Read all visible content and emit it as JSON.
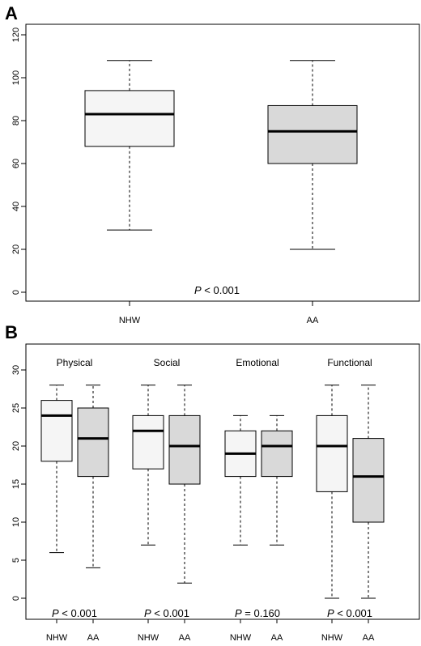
{
  "chart_data": [
    {
      "panel_label": "A",
      "type": "box",
      "ylim": [
        0,
        120
      ],
      "yticks": [
        0,
        20,
        40,
        60,
        80,
        100,
        120
      ],
      "grid": false,
      "categories": [
        "NHW",
        "AA"
      ],
      "boxes": [
        {
          "category": "NHW",
          "whisker_low": 29,
          "q1": 68,
          "median": 83,
          "q3": 94,
          "whisker_high": 108,
          "fill": "#f5f5f5"
        },
        {
          "category": "AA",
          "whisker_low": 20,
          "q1": 60,
          "median": 75,
          "q3": 87,
          "whisker_high": 108,
          "fill": "#d9d9d9"
        }
      ],
      "annotation": {
        "p": "P",
        "rest": " < 0.001"
      }
    },
    {
      "panel_label": "B",
      "type": "box",
      "ylim": [
        0,
        30
      ],
      "yticks": [
        0,
        5,
        10,
        15,
        20,
        25,
        30
      ],
      "grid": false,
      "groups": [
        {
          "title": "Physical",
          "pvalue": {
            "p": "P",
            "rest": " < 0.001"
          },
          "boxes": [
            {
              "category": "NHW",
              "whisker_low": 6,
              "q1": 18,
              "median": 24,
              "q3": 26,
              "whisker_high": 28,
              "fill": "#f5f5f5"
            },
            {
              "category": "AA",
              "whisker_low": 4,
              "q1": 16,
              "median": 21,
              "q3": 25,
              "whisker_high": 28,
              "fill": "#d9d9d9"
            }
          ]
        },
        {
          "title": "Social",
          "pvalue": {
            "p": "P",
            "rest": " < 0.001"
          },
          "boxes": [
            {
              "category": "NHW",
              "whisker_low": 7,
              "q1": 17,
              "median": 22,
              "q3": 24,
              "whisker_high": 28,
              "fill": "#f5f5f5"
            },
            {
              "category": "AA",
              "whisker_low": 2,
              "q1": 15,
              "median": 20,
              "q3": 24,
              "whisker_high": 28,
              "fill": "#d9d9d9"
            }
          ]
        },
        {
          "title": "Emotional",
          "pvalue": {
            "p": "P",
            "rest": " = 0.160"
          },
          "boxes": [
            {
              "category": "NHW",
              "whisker_low": 7,
              "q1": 16,
              "median": 19,
              "q3": 22,
              "whisker_high": 24,
              "fill": "#f5f5f5"
            },
            {
              "category": "AA",
              "whisker_low": 7,
              "q1": 16,
              "median": 20,
              "q3": 22,
              "whisker_high": 24,
              "fill": "#d9d9d9"
            }
          ]
        },
        {
          "title": "Functional",
          "pvalue": {
            "p": "P",
            "rest": " < 0.001"
          },
          "boxes": [
            {
              "category": "NHW",
              "whisker_low": 0,
              "q1": 14,
              "median": 20,
              "q3": 24,
              "whisker_high": 28,
              "fill": "#f5f5f5"
            },
            {
              "category": "AA",
              "whisker_low": 0,
              "q1": 10,
              "median": 16,
              "q3": 21,
              "whisker_high": 28,
              "fill": "#d9d9d9"
            }
          ]
        }
      ]
    }
  ]
}
